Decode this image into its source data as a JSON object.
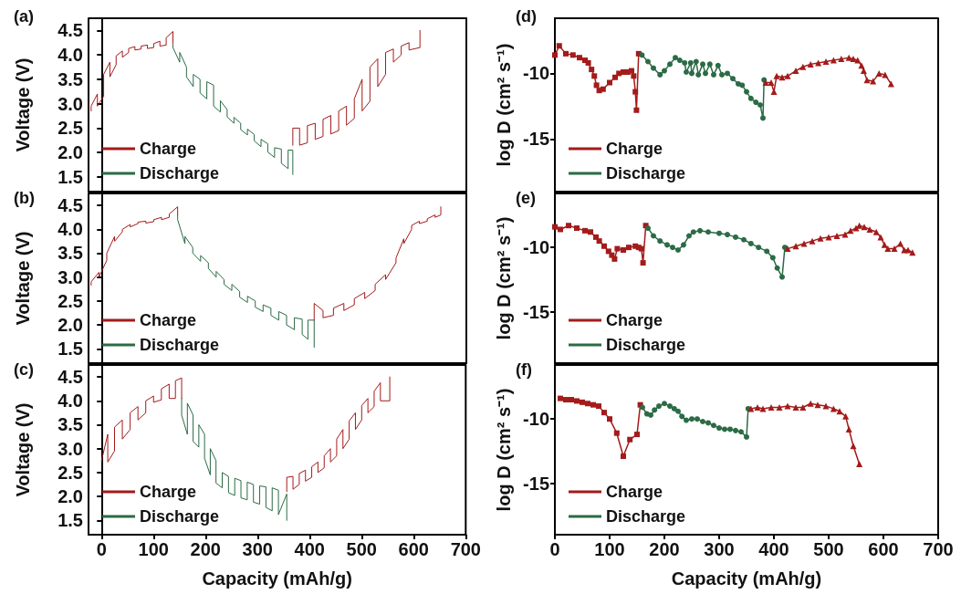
{
  "chart_data": [
    {
      "type": "line",
      "title": "(a)",
      "ylabel": "Voltage (V)",
      "xlim": [
        -25,
        700
      ],
      "xticks": [
        0,
        100,
        200,
        300,
        400,
        500,
        600,
        700
      ],
      "ylim": [
        1.2,
        4.75
      ],
      "yticks": [
        1.5,
        {
          "value": 2,
          "label": "2.0"
        },
        2.5,
        {
          "value": 3,
          "label": "3.0"
        },
        3.5,
        {
          "value": 4,
          "label": "4.0"
        },
        4.5
      ],
      "legend": "bottom left",
      "tick_labels": "y",
      "series": [
        {
          "name": "Charge",
          "color": "#a31b1b",
          "x": [
            -20,
            -20,
            -8,
            -8,
            4,
            4,
            16,
            16,
            28,
            28,
            40,
            40,
            52,
            52,
            64,
            64,
            76,
            76,
            88,
            88,
            100,
            100,
            112,
            112,
            124,
            124,
            137,
            137
          ],
          "values": [
            2.85,
            2.95,
            3.2,
            2.95,
            3.15,
            3.6,
            3.85,
            3.55,
            3.8,
            3.98,
            4.08,
            3.95,
            4.05,
            4.13,
            4.17,
            4.1,
            4.12,
            4.18,
            4.2,
            4.13,
            4.15,
            4.23,
            4.28,
            4.18,
            4.2,
            4.35,
            4.48,
            4.22
          ]
        },
        {
          "name": "Discharge",
          "color": "#2b6b45",
          "x": [
            137,
            137,
            150,
            150,
            163,
            163,
            176,
            176,
            189,
            189,
            202,
            202,
            215,
            215,
            228,
            228,
            241,
            241,
            254,
            254,
            267,
            267,
            280,
            280,
            293,
            293,
            306,
            306,
            319,
            319,
            332,
            332,
            345,
            345,
            358,
            358,
            367,
            367
          ],
          "values": [
            4.2,
            4.15,
            3.85,
            4.05,
            3.75,
            3.55,
            3.35,
            3.6,
            3.5,
            3.22,
            3.1,
            3.45,
            3.38,
            2.95,
            2.83,
            3.06,
            2.88,
            2.73,
            2.6,
            2.72,
            2.6,
            2.47,
            2.36,
            2.48,
            2.37,
            2.24,
            2.12,
            2.27,
            2.18,
            2.01,
            1.9,
            2.1,
            2.07,
            1.78,
            1.67,
            2.05,
            2.05,
            1.55
          ]
        },
        {
          "color": "#a31b1b",
          "x": [
            367,
            367,
            380,
            380,
            395,
            395,
            410,
            410,
            425,
            425,
            440,
            440,
            455,
            455,
            470,
            470,
            485,
            485,
            500,
            500,
            515,
            515,
            530,
            530,
            545,
            545,
            560,
            560,
            575,
            575,
            590,
            590,
            611,
            611
          ],
          "values": [
            2.15,
            2.5,
            2.5,
            2.15,
            2.2,
            2.55,
            2.6,
            2.27,
            2.33,
            2.68,
            2.76,
            2.38,
            2.45,
            2.85,
            2.95,
            2.56,
            2.7,
            3.1,
            3.5,
            2.85,
            3.05,
            3.75,
            3.92,
            3.35,
            3.6,
            4.05,
            4.12,
            3.85,
            4.0,
            4.18,
            4.25,
            4.1,
            4.15,
            4.5
          ]
        }
      ]
    },
    {
      "type": "line",
      "title": "(b)",
      "ylabel": "Voltage (V)",
      "xlim": [
        -25,
        700
      ],
      "xticks": [
        0,
        100,
        200,
        300,
        400,
        500,
        600,
        700
      ],
      "ylim": [
        1.2,
        4.75
      ],
      "yticks": [
        1.5,
        {
          "value": 2,
          "label": "2.0"
        },
        2.5,
        {
          "value": 3,
          "label": "3.0"
        },
        3.5,
        {
          "value": 4,
          "label": "4.0"
        },
        4.5
      ],
      "legend": "bottom left",
      "tick_labels": "y",
      "series": [
        {
          "name": "Charge",
          "color": "#a31b1b",
          "x": [
            -20,
            -20,
            -5,
            -5,
            10,
            10,
            25,
            25,
            40,
            40,
            55,
            55,
            70,
            70,
            85,
            85,
            100,
            100,
            115,
            115,
            130,
            130,
            146,
            146
          ],
          "values": [
            2.83,
            2.9,
            3.1,
            3.0,
            3.35,
            3.5,
            3.85,
            3.75,
            3.95,
            4.0,
            4.1,
            4.05,
            4.12,
            4.15,
            4.17,
            4.13,
            4.16,
            4.2,
            4.25,
            4.2,
            4.25,
            4.32,
            4.47,
            4.3
          ]
        },
        {
          "name": "Discharge",
          "color": "#2b6b45",
          "x": [
            146,
            146,
            160,
            160,
            175,
            175,
            190,
            190,
            205,
            205,
            220,
            220,
            235,
            235,
            250,
            250,
            265,
            265,
            280,
            280,
            295,
            295,
            310,
            310,
            325,
            325,
            340,
            340,
            355,
            355,
            370,
            370,
            385,
            385,
            396,
            396,
            408,
            408
          ],
          "values": [
            4.3,
            4.2,
            3.7,
            3.85,
            3.62,
            3.5,
            3.33,
            3.45,
            3.3,
            3.18,
            3.0,
            3.12,
            2.95,
            2.85,
            2.72,
            2.85,
            2.7,
            2.58,
            2.47,
            2.6,
            2.5,
            2.37,
            2.28,
            2.42,
            2.35,
            2.2,
            2.1,
            2.28,
            2.2,
            2.0,
            1.9,
            2.15,
            2.12,
            1.8,
            1.7,
            2.1,
            2.1,
            1.53
          ]
        },
        {
          "color": "#a31b1b",
          "x": [
            408,
            408,
            425,
            425,
            445,
            445,
            465,
            465,
            485,
            485,
            505,
            505,
            525,
            525,
            545,
            545,
            565,
            565,
            580,
            580,
            595,
            595,
            610,
            610,
            625,
            625,
            640,
            640,
            651,
            651
          ],
          "values": [
            2.1,
            2.45,
            2.3,
            2.15,
            2.2,
            2.35,
            2.45,
            2.3,
            2.42,
            2.55,
            2.68,
            2.55,
            2.72,
            2.85,
            3.05,
            2.95,
            3.3,
            3.4,
            3.8,
            3.7,
            4.0,
            4.08,
            4.17,
            4.12,
            4.17,
            4.22,
            4.3,
            4.25,
            4.3,
            4.47
          ]
        }
      ]
    },
    {
      "type": "line",
      "title": "(c)",
      "xlabel": "Capacity (mAh/g)",
      "ylabel": "Voltage (V)",
      "xlim": [
        -25,
        700
      ],
      "xticks": [
        0,
        100,
        200,
        300,
        400,
        500,
        600,
        700
      ],
      "ylim": [
        1.2,
        4.75
      ],
      "yticks": [
        1.5,
        {
          "value": 2,
          "label": "2.0"
        },
        2.5,
        {
          "value": 3,
          "label": "3.0"
        },
        3.5,
        {
          "value": 4,
          "label": "4.0"
        },
        4.5
      ],
      "legend": "bottom left",
      "series": [
        {
          "name": "Charge",
          "color": "#a31b1b",
          "x": [
            0,
            0,
            12,
            12,
            25,
            25,
            40,
            40,
            55,
            55,
            70,
            70,
            85,
            85,
            100,
            100,
            115,
            115,
            130,
            130,
            142,
            142,
            154,
            154
          ],
          "values": [
            2.72,
            2.75,
            3.3,
            2.72,
            2.95,
            3.45,
            3.6,
            3.2,
            3.4,
            3.75,
            3.88,
            3.6,
            3.75,
            4.0,
            4.1,
            3.97,
            4.02,
            4.25,
            4.35,
            4.05,
            4.05,
            4.42,
            4.48,
            4.05
          ]
        },
        {
          "name": "Discharge",
          "color": "#2b6b45",
          "x": [
            154,
            154,
            165,
            165,
            176,
            176,
            187,
            187,
            198,
            198,
            209,
            209,
            220,
            220,
            232,
            232,
            244,
            244,
            256,
            256,
            268,
            268,
            280,
            280,
            292,
            292,
            304,
            304,
            316,
            316,
            328,
            328,
            340,
            340,
            356,
            356
          ],
          "values": [
            4.05,
            3.7,
            3.3,
            3.95,
            3.7,
            3.15,
            3.03,
            3.5,
            3.3,
            2.8,
            2.45,
            3.0,
            2.75,
            2.28,
            2.18,
            2.5,
            2.42,
            2.08,
            2.02,
            2.38,
            2.33,
            1.97,
            1.93,
            2.3,
            2.25,
            1.88,
            1.84,
            2.22,
            2.2,
            1.77,
            1.7,
            2.18,
            2.13,
            1.62,
            2.05,
            1.5
          ]
        },
        {
          "color": "#a31b1b",
          "x": [
            356,
            356,
            368,
            368,
            380,
            380,
            392,
            392,
            404,
            404,
            416,
            416,
            428,
            428,
            440,
            440,
            452,
            452,
            464,
            464,
            476,
            476,
            488,
            488,
            500,
            500,
            512,
            512,
            524,
            524,
            536,
            536,
            554,
            554
          ],
          "values": [
            2.1,
            2.4,
            2.42,
            2.15,
            2.25,
            2.48,
            2.55,
            2.32,
            2.4,
            2.62,
            2.72,
            2.5,
            2.6,
            2.85,
            3.0,
            2.72,
            2.85,
            3.2,
            3.4,
            3.0,
            3.2,
            3.58,
            3.75,
            3.4,
            3.6,
            3.9,
            4.05,
            3.75,
            3.88,
            4.2,
            4.38,
            4.0,
            4.0,
            4.5
          ]
        }
      ]
    },
    {
      "type": "line",
      "title": "(d)",
      "ylabel": "log D (cm² s⁻¹)",
      "xlim": [
        0,
        700
      ],
      "xticks": [
        0,
        100,
        200,
        300,
        400,
        500,
        600,
        700
      ],
      "ylim": [
        -19,
        -5.8
      ],
      "yticks": [
        -15,
        -10
      ],
      "legend": "bottom left",
      "tick_labels": "y",
      "series": [
        {
          "name": "Charge",
          "color": "#a31b1b",
          "marker": "square",
          "x": [
            0,
            8,
            20,
            33,
            45,
            55,
            61,
            67,
            72,
            76,
            81,
            88,
            100,
            110,
            117,
            125,
            133,
            140,
            144,
            147,
            149,
            153
          ],
          "values": [
            -8.6,
            -7.9,
            -8.5,
            -8.6,
            -8.8,
            -9.0,
            -9.2,
            -9.7,
            -10.2,
            -10.9,
            -11.3,
            -11.2,
            -10.7,
            -10.3,
            -10.0,
            -9.9,
            -9.9,
            -9.8,
            -10.2,
            -11.4,
            -12.8,
            -8.5
          ]
        },
        {
          "name": "Discharge",
          "color": "#2b6b45",
          "marker": "circle",
          "x": [
            159,
            170,
            180,
            192,
            200,
            210,
            220,
            228,
            237,
            240,
            248,
            250,
            258,
            262,
            270,
            275,
            283,
            290,
            298,
            305,
            315,
            325,
            335,
            342,
            350,
            358,
            367,
            375,
            380,
            382
          ],
          "values": [
            -8.6,
            -9.1,
            -9.6,
            -10.1,
            -9.8,
            -9.3,
            -8.8,
            -9.0,
            -9.2,
            -9.9,
            -9.2,
            -10.0,
            -9.1,
            -10.1,
            -9.3,
            -10.0,
            -9.3,
            -10.1,
            -9.4,
            -10.1,
            -10.0,
            -10.4,
            -10.8,
            -10.9,
            -11.4,
            -11.9,
            -12.2,
            -12.4,
            -13.4,
            -10.5
          ]
        },
        {
          "color": "#a31b1b",
          "marker": "triangle",
          "x": [
            385,
            395,
            400,
            405,
            415,
            425,
            440,
            453,
            467,
            481,
            495,
            509,
            523,
            537,
            545,
            553,
            560,
            564,
            570,
            581,
            592,
            603,
            614
          ],
          "values": [
            -10.7,
            -10.7,
            -11.4,
            -10.2,
            -10.3,
            -10.2,
            -9.8,
            -9.5,
            -9.3,
            -9.2,
            -9.1,
            -9.0,
            -8.9,
            -8.8,
            -8.9,
            -9.0,
            -9.4,
            -9.8,
            -10.5,
            -10.6,
            -10.0,
            -10.1,
            -10.8
          ]
        }
      ]
    },
    {
      "type": "line",
      "title": "(e)",
      "ylabel": "log D (cm² s⁻¹)",
      "xlim": [
        0,
        700
      ],
      "xticks": [
        0,
        100,
        200,
        300,
        400,
        500,
        600,
        700
      ],
      "ylim": [
        -19,
        -5.8
      ],
      "yticks": [
        -15,
        -10
      ],
      "legend": "bottom left",
      "tick_labels": "y",
      "series": [
        {
          "name": "Charge",
          "color": "#a31b1b",
          "marker": "square",
          "x": [
            0,
            10,
            25,
            40,
            55,
            65,
            75,
            81,
            90,
            98,
            104,
            109,
            114,
            125,
            135,
            147,
            153,
            158,
            161,
            166
          ],
          "values": [
            -8.4,
            -8.6,
            -8.3,
            -8.5,
            -8.7,
            -8.8,
            -9.2,
            -9.5,
            -9.9,
            -10.3,
            -10.6,
            -10.9,
            -10.1,
            -10.2,
            -10.0,
            -9.9,
            -10.0,
            -10.1,
            -11.2,
            -8.3
          ]
        },
        {
          "name": "Discharge",
          "color": "#2b6b45",
          "marker": "circle",
          "x": [
            170,
            180,
            192,
            205,
            215,
            225,
            235,
            245,
            253,
            265,
            280,
            300,
            315,
            330,
            345,
            358,
            372,
            387,
            398,
            406,
            415,
            420
          ],
          "values": [
            -8.5,
            -9.1,
            -9.5,
            -9.8,
            -10.0,
            -10.2,
            -9.8,
            -9.1,
            -8.8,
            -8.7,
            -8.8,
            -8.9,
            -9.0,
            -9.2,
            -9.4,
            -9.7,
            -10.0,
            -10.3,
            -10.8,
            -11.6,
            -12.3,
            -10.0
          ]
        },
        {
          "color": "#a31b1b",
          "marker": "triangle",
          "x": [
            425,
            440,
            455,
            470,
            485,
            500,
            515,
            530,
            540,
            550,
            556,
            565,
            575,
            587,
            595,
            602,
            608,
            620,
            631,
            638,
            645,
            653
          ],
          "values": [
            -10.1,
            -9.9,
            -9.7,
            -9.5,
            -9.3,
            -9.2,
            -9.1,
            -9.0,
            -8.7,
            -8.5,
            -8.3,
            -8.4,
            -8.6,
            -8.8,
            -9.2,
            -9.8,
            -10.1,
            -10.1,
            -9.7,
            -10.2,
            -10.2,
            -10.4
          ]
        }
      ]
    },
    {
      "type": "line",
      "title": "(f)",
      "xlabel": "Capacity (mAh/g)",
      "ylabel": "log D (cm² s⁻¹)",
      "xlim": [
        0,
        700
      ],
      "xticks": [
        0,
        100,
        200,
        300,
        400,
        500,
        600,
        700
      ],
      "ylim": [
        -19,
        -5.8
      ],
      "yticks": [
        -15,
        -10
      ],
      "legend": "bottom left",
      "series": [
        {
          "name": "Charge",
          "color": "#a31b1b",
          "marker": "square",
          "x": [
            10,
            20,
            30,
            40,
            50,
            60,
            70,
            80,
            90,
            100,
            113,
            125,
            137,
            150,
            156
          ],
          "values": [
            -8.4,
            -8.5,
            -8.5,
            -8.6,
            -8.7,
            -8.8,
            -8.9,
            -9.0,
            -9.5,
            -10.0,
            -11.1,
            -12.9,
            -11.6,
            -11.2,
            -8.9
          ]
        },
        {
          "name": "Discharge",
          "color": "#2b6b45",
          "marker": "circle",
          "x": [
            160,
            168,
            175,
            182,
            190,
            200,
            210,
            218,
            225,
            232,
            240,
            250,
            260,
            270,
            280,
            290,
            300,
            310,
            320,
            330,
            340,
            350,
            353
          ],
          "values": [
            -9.1,
            -9.6,
            -9.7,
            -9.3,
            -9.0,
            -8.8,
            -9.0,
            -9.2,
            -9.4,
            -9.8,
            -10.1,
            -10.0,
            -10.0,
            -10.2,
            -10.3,
            -10.5,
            -10.7,
            -10.8,
            -10.8,
            -10.9,
            -11.0,
            -11.4,
            -9.2
          ]
        },
        {
          "color": "#a31b1b",
          "marker": "triangle",
          "x": [
            358,
            370,
            380,
            395,
            410,
            425,
            440,
            453,
            467,
            480,
            495,
            509,
            520,
            531,
            537,
            545,
            556
          ],
          "values": [
            -9.2,
            -9.1,
            -9.2,
            -9.1,
            -9.1,
            -9.0,
            -9.1,
            -9.1,
            -8.8,
            -8.9,
            -9.0,
            -9.2,
            -9.4,
            -9.8,
            -10.8,
            -12.1,
            -13.5
          ]
        }
      ]
    }
  ]
}
